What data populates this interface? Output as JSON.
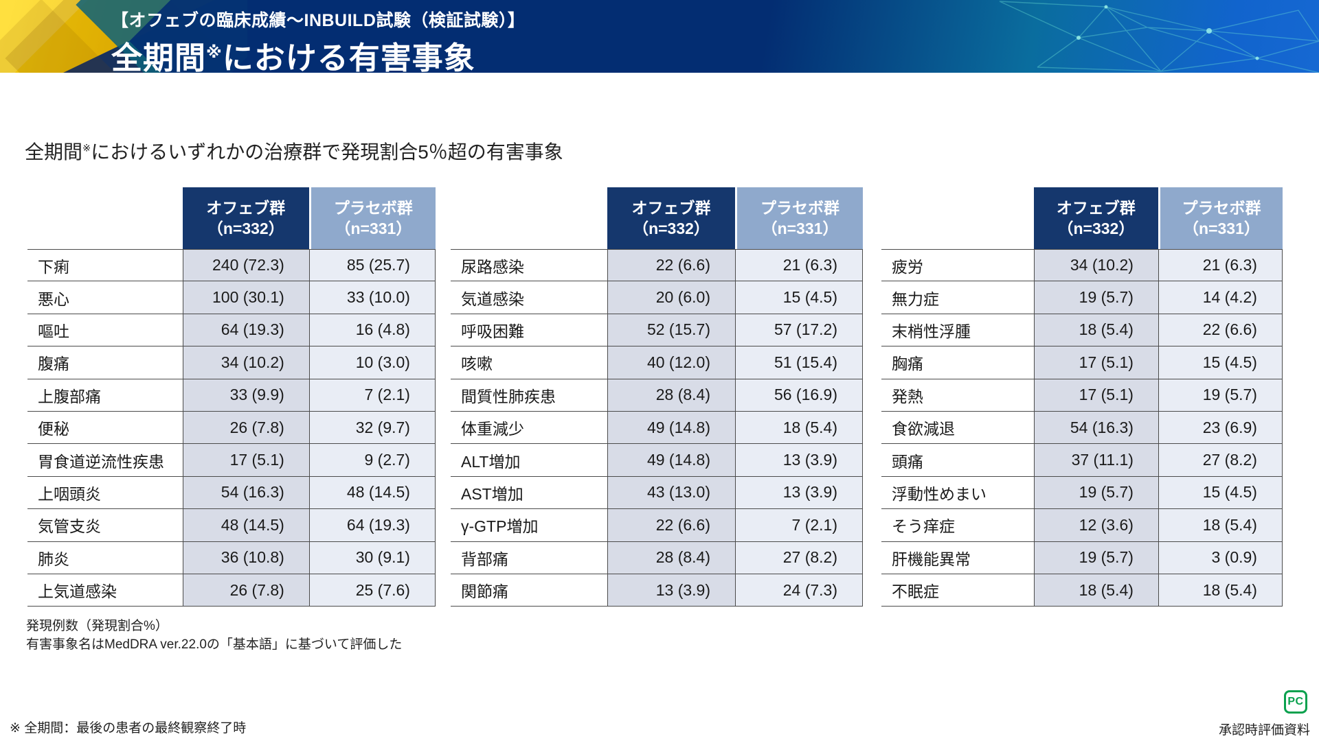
{
  "header": {
    "kicker": "【オフェブの臨床成績～INBUILD試験（検証試験）】",
    "title_pre": "全期間",
    "title_sup": "※",
    "title_post": "における有害事象"
  },
  "subtitle": {
    "pre": "全期間",
    "sup": "※",
    "post": "におけるいずれかの治療群で発現割合5％超の有害事象"
  },
  "columns": {
    "ofev_label": "オフェブ群",
    "ofev_n": "（n=332）",
    "placebo_label": "プラセボ群",
    "placebo_n": "（n=331）"
  },
  "tables": [
    {
      "rows": [
        {
          "label": "下痢",
          "ofev": "240 (72.3)",
          "placebo": "85 (25.7)"
        },
        {
          "label": "悪心",
          "ofev": "100 (30.1)",
          "placebo": "33 (10.0)"
        },
        {
          "label": "嘔吐",
          "ofev": "64 (19.3)",
          "placebo": "16 (4.8)"
        },
        {
          "label": "腹痛",
          "ofev": "34 (10.2)",
          "placebo": "10 (3.0)"
        },
        {
          "label": "上腹部痛",
          "ofev": "33 (9.9)",
          "placebo": "7 (2.1)"
        },
        {
          "label": "便秘",
          "ofev": "26 (7.8)",
          "placebo": "32 (9.7)"
        },
        {
          "label": "胃食道逆流性疾患",
          "ofev": "17 (5.1)",
          "placebo": "9 (2.7)"
        },
        {
          "label": "上咽頭炎",
          "ofev": "54 (16.3)",
          "placebo": "48 (14.5)"
        },
        {
          "label": "気管支炎",
          "ofev": "48 (14.5)",
          "placebo": "64 (19.3)"
        },
        {
          "label": "肺炎",
          "ofev": "36 (10.8)",
          "placebo": "30 (9.1)"
        },
        {
          "label": "上気道感染",
          "ofev": "26 (7.8)",
          "placebo": "25 (7.6)"
        }
      ]
    },
    {
      "rows": [
        {
          "label": "尿路感染",
          "ofev": "22 (6.6)",
          "placebo": "21 (6.3)"
        },
        {
          "label": "気道感染",
          "ofev": "20 (6.0)",
          "placebo": "15 (4.5)"
        },
        {
          "label": "呼吸困難",
          "ofev": "52 (15.7)",
          "placebo": "57 (17.2)"
        },
        {
          "label": "咳嗽",
          "ofev": "40 (12.0)",
          "placebo": "51 (15.4)"
        },
        {
          "label": "間質性肺疾患",
          "ofev": "28 (8.4)",
          "placebo": "56 (16.9)"
        },
        {
          "label": "体重減少",
          "ofev": "49 (14.8)",
          "placebo": "18 (5.4)"
        },
        {
          "label": "ALT増加",
          "ofev": "49 (14.8)",
          "placebo": "13 (3.9)"
        },
        {
          "label": "AST増加",
          "ofev": "43 (13.0)",
          "placebo": "13 (3.9)"
        },
        {
          "label": "γ-GTP増加",
          "ofev": "22 (6.6)",
          "placebo": "7 (2.1)"
        },
        {
          "label": "背部痛",
          "ofev": "28 (8.4)",
          "placebo": "27 (8.2)"
        },
        {
          "label": "関節痛",
          "ofev": "13 (3.9)",
          "placebo": "24 (7.3)"
        }
      ]
    },
    {
      "rows": [
        {
          "label": "疲労",
          "ofev": "34 (10.2)",
          "placebo": "21 (6.3)"
        },
        {
          "label": "無力症",
          "ofev": "19 (5.7)",
          "placebo": "14 (4.2)"
        },
        {
          "label": "末梢性浮腫",
          "ofev": "18 (5.4)",
          "placebo": "22 (6.6)"
        },
        {
          "label": "胸痛",
          "ofev": "17 (5.1)",
          "placebo": "15 (4.5)"
        },
        {
          "label": "発熱",
          "ofev": "17 (5.1)",
          "placebo": "19 (5.7)"
        },
        {
          "label": "食欲減退",
          "ofev": "54 (16.3)",
          "placebo": "23 (6.9)"
        },
        {
          "label": "頭痛",
          "ofev": "37 (11.1)",
          "placebo": "27 (8.2)"
        },
        {
          "label": "浮動性めまい",
          "ofev": "19 (5.7)",
          "placebo": "15 (4.5)"
        },
        {
          "label": "そう痒症",
          "ofev": "12 (3.6)",
          "placebo": "18 (5.4)"
        },
        {
          "label": "肝機能異常",
          "ofev": "19 (5.7)",
          "placebo": "3 (0.9)"
        },
        {
          "label": "不眠症",
          "ofev": "18 (5.4)",
          "placebo": "18 (5.4)"
        }
      ]
    }
  ],
  "footnotes": {
    "line1": "発現例数（発現割合%）",
    "line2": "有害事象名はMedDRA ver.22.0の「基本語」に基づいて評価した"
  },
  "bottom": {
    "note": "※ 全期間：最後の患者の最終観察終了時",
    "approval": "承認時評価資料",
    "logo_text": "PC"
  },
  "colors": {
    "band_navy": "#032d72",
    "band_blue_right": "#1164cd",
    "gold": "#f6c404",
    "teal_deco": "#0d627a",
    "ofev_header": "#15376d",
    "placebo_header": "#8fa9cc",
    "ofev_cell": "#d8dce7",
    "placebo_cell": "#e9edf5",
    "table_border": "#4a4a4a",
    "logo_green": "#0aa14e"
  }
}
